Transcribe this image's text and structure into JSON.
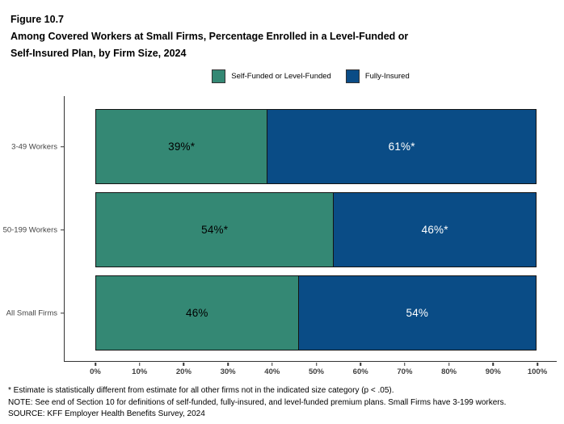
{
  "header": {
    "figure_label": "Figure 10.7",
    "title_lines": [
      "Among Covered Workers at Small Firms, Percentage Enrolled in a Level-Funded or",
      "Self-Insured Plan, by Firm Size, 2024"
    ]
  },
  "chart_data": {
    "type": "bar",
    "orientation": "horizontal",
    "stacked": true,
    "title": "Among Covered Workers at Small Firms, Percentage Enrolled in a Level-Funded or Self-Insured Plan, by Firm Size, 2024",
    "categories": [
      "3-49 Workers",
      "50-199 Workers",
      "All Small Firms"
    ],
    "series": [
      {
        "name": "Self-Funded or Level-Funded",
        "color": "#348874",
        "values": [
          39,
          54,
          46
        ],
        "labels": [
          "39%*",
          "54%*",
          "46%"
        ],
        "label_color": "#000000"
      },
      {
        "name": "Fully-Insured",
        "color": "#0A4C86",
        "values": [
          61,
          46,
          54
        ],
        "labels": [
          "61%*",
          "46%*",
          "54%"
        ],
        "label_color": "#FFFFFF"
      }
    ],
    "x_axis": {
      "min": 0,
      "max": 100,
      "ticks": [
        "0%",
        "10%",
        "20%",
        "30%",
        "40%",
        "50%",
        "60%",
        "70%",
        "80%",
        "90%",
        "100%"
      ]
    },
    "legend_position": "top",
    "grid": false
  },
  "footnotes": [
    "* Estimate is statistically different from estimate for all other firms not in the indicated size category (p < .05).",
    "NOTE: See end of Section 10 for definitions of self-funded, fully-insured, and level-funded premium plans. Small Firms have 3-199 workers.",
    "SOURCE: KFF Employer Health Benefits Survey, 2024"
  ]
}
